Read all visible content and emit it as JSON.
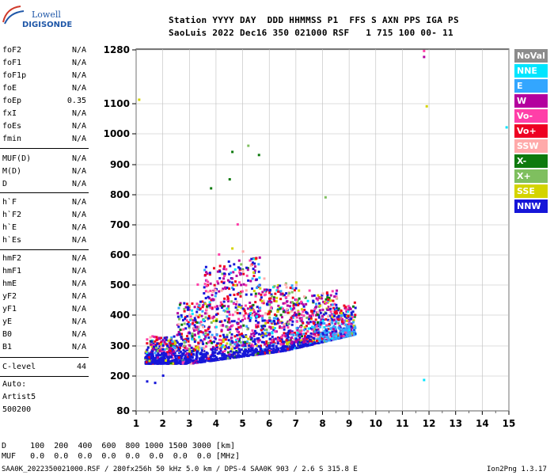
{
  "logo": {
    "line1": "Lowell",
    "line2": "DIGISONDE"
  },
  "header": {
    "line1": "Station YYYY DAY  DDD HHMMSS P1  FFS S AXN PPS IGA PS",
    "line2": "SaoLuis 2022 Dec16 350 021000 RSF   1 715 100 00- 11"
  },
  "params": {
    "group1": [
      {
        "label": "foF2",
        "value": "N/A"
      },
      {
        "label": "foF1",
        "value": "N/A"
      },
      {
        "label": "foF1p",
        "value": "N/A"
      },
      {
        "label": "foE",
        "value": "N/A"
      },
      {
        "label": "foEp",
        "value": "0.35"
      },
      {
        "label": "fxI",
        "value": "N/A"
      },
      {
        "label": "foEs",
        "value": "N/A"
      },
      {
        "label": "fmin",
        "value": "N/A"
      }
    ],
    "group2": [
      {
        "label": "MUF(D)",
        "value": "N/A"
      },
      {
        "label": "M(D)",
        "value": "N/A"
      },
      {
        "label": "D",
        "value": "N/A"
      }
    ],
    "group3": [
      {
        "label": "h`F",
        "value": "N/A"
      },
      {
        "label": "h`F2",
        "value": "N/A"
      },
      {
        "label": "h`E",
        "value": "N/A"
      },
      {
        "label": "h`Es",
        "value": "N/A"
      }
    ],
    "group4": [
      {
        "label": "hmF2",
        "value": "N/A"
      },
      {
        "label": "hmF1",
        "value": "N/A"
      },
      {
        "label": "hmE",
        "value": "N/A"
      },
      {
        "label": "yF2",
        "value": "N/A"
      },
      {
        "label": "yF1",
        "value": "N/A"
      },
      {
        "label": "yE",
        "value": "N/A"
      },
      {
        "label": "B0",
        "value": "N/A"
      },
      {
        "label": "B1",
        "value": "N/A"
      }
    ],
    "clevel": {
      "label": "C-level",
      "value": "44"
    },
    "auto": [
      "Auto:",
      "Artist5",
      "500200"
    ]
  },
  "legend": [
    {
      "label": "NoVal",
      "color": "#8c8c8c"
    },
    {
      "label": "NNE",
      "color": "#00e5ff"
    },
    {
      "label": "E",
      "color": "#33a6ff"
    },
    {
      "label": "W",
      "color": "#b4009e"
    },
    {
      "label": "Vo-",
      "color": "#ff3fa8"
    },
    {
      "label": "Vo+",
      "color": "#ee0022"
    },
    {
      "label": "SSW",
      "color": "#ffaaaa"
    },
    {
      "label": "X-",
      "color": "#0e7a0e"
    },
    {
      "label": "X+",
      "color": "#7fbf5f"
    },
    {
      "label": "SSE",
      "color": "#d4d400"
    },
    {
      "label": "NNW",
      "color": "#1616d8"
    }
  ],
  "footer": {
    "d_row": "D     100  200  400  600  800 1000 1500 3000 [km]",
    "muf_row": "MUF   0.0  0.0  0.0  0.0  0.0  0.0  0.0  0.0 [MHz]",
    "file_line": "SAA0K_2022350021000.RSF / 280fx256h 50 kHz 5.0 km / DPS-4 SAA0K 903 / 2.6 S 315.8 E",
    "version": "Ion2Png 1.3.17"
  },
  "chart_data": {
    "type": "scatter",
    "title": "",
    "xlabel": "",
    "ylabel": "",
    "xlim": [
      1,
      15
    ],
    "ylim": [
      80,
      1280
    ],
    "x_ticks": [
      1,
      2,
      3,
      4,
      5,
      6,
      7,
      8,
      9,
      10,
      11,
      12,
      13,
      14,
      15
    ],
    "y_ticks": [
      80,
      200,
      300,
      400,
      500,
      600,
      700,
      800,
      900,
      1000,
      1100,
      1280
    ],
    "y_axis_note": "nonlinear (group range) scale",
    "grid": true,
    "legend_position": "right",
    "series": [
      {
        "name": "NNE",
        "color": "#00e5ff",
        "points": [
          [
            3.1,
            320
          ],
          [
            4.0,
            360
          ],
          [
            5.3,
            390
          ],
          [
            6.8,
            420
          ],
          [
            8.0,
            380
          ],
          [
            9.0,
            350
          ],
          [
            8.5,
            330
          ],
          [
            7.6,
            360
          ],
          [
            4.4,
            420
          ],
          [
            6.1,
            340
          ],
          [
            11.8,
            185
          ],
          [
            14.9,
            1020
          ]
        ]
      },
      {
        "name": "E",
        "color": "#33a6ff",
        "points": [
          [
            8.1,
            340
          ],
          [
            8.4,
            330
          ],
          [
            8.7,
            345
          ],
          [
            9.0,
            340
          ],
          [
            7.9,
            360
          ],
          [
            8.3,
            355
          ],
          [
            8.6,
            325
          ],
          [
            8.9,
            335
          ],
          [
            7.7,
            345
          ],
          [
            8.2,
            325
          ],
          [
            7.3,
            350
          ],
          [
            6.9,
            335
          ]
        ]
      },
      {
        "name": "W",
        "color": "#b4009e",
        "points": [
          [
            1.8,
            260
          ],
          [
            2.4,
            280
          ],
          [
            3.0,
            300
          ],
          [
            3.6,
            330
          ],
          [
            4.2,
            350
          ],
          [
            4.8,
            370
          ],
          [
            5.4,
            340
          ],
          [
            6.0,
            360
          ],
          [
            6.6,
            330
          ],
          [
            7.2,
            380
          ],
          [
            3.9,
            450
          ],
          [
            4.6,
            520
          ],
          [
            5.6,
            470
          ],
          [
            11.8,
            1255
          ]
        ]
      },
      {
        "name": "Vo-",
        "color": "#ff3fa8",
        "points": [
          [
            2.2,
            270
          ],
          [
            2.9,
            290
          ],
          [
            3.7,
            310
          ],
          [
            4.5,
            400
          ],
          [
            5.1,
            430
          ],
          [
            5.9,
            380
          ],
          [
            6.5,
            420
          ],
          [
            7.0,
            450
          ],
          [
            7.5,
            480
          ],
          [
            8.3,
            410
          ],
          [
            3.3,
            500
          ],
          [
            4.1,
            600
          ],
          [
            4.8,
            700
          ],
          [
            11.8,
            1275
          ]
        ]
      },
      {
        "name": "Vo+",
        "color": "#ee0022",
        "points": [
          [
            2.6,
            260
          ],
          [
            3.2,
            285
          ],
          [
            4.0,
            300
          ],
          [
            4.7,
            330
          ],
          [
            5.5,
            360
          ],
          [
            6.2,
            400
          ],
          [
            6.9,
            430
          ],
          [
            7.6,
            410
          ],
          [
            8.2,
            450
          ],
          [
            8.8,
            430
          ],
          [
            9.2,
            440
          ],
          [
            3.4,
            420
          ],
          [
            4.3,
            560
          ]
        ]
      },
      {
        "name": "SSW",
        "color": "#ffaaaa",
        "points": [
          [
            3.5,
            360
          ],
          [
            4.2,
            480
          ],
          [
            5.0,
            610
          ],
          [
            5.8,
            520
          ],
          [
            6.6,
            500
          ],
          [
            7.3,
            460
          ],
          [
            8.0,
            470
          ],
          [
            3.0,
            400
          ]
        ]
      },
      {
        "name": "X-",
        "color": "#0e7a0e",
        "points": [
          [
            2.3,
            300
          ],
          [
            3.1,
            330
          ],
          [
            4.0,
            380
          ],
          [
            4.5,
            850
          ],
          [
            4.6,
            940
          ],
          [
            5.6,
            930
          ],
          [
            6.4,
            420
          ],
          [
            7.8,
            400
          ],
          [
            8.6,
            420
          ],
          [
            3.8,
            820
          ]
        ]
      },
      {
        "name": "X+",
        "color": "#7fbf5f",
        "points": [
          [
            2.8,
            310
          ],
          [
            3.6,
            340
          ],
          [
            4.4,
            360
          ],
          [
            5.2,
            960
          ],
          [
            6.0,
            390
          ],
          [
            6.7,
            370
          ],
          [
            7.4,
            390
          ],
          [
            8.1,
            790
          ],
          [
            4.9,
            470
          ]
        ]
      },
      {
        "name": "SSE",
        "color": "#d4d400",
        "points": [
          [
            2.1,
            250
          ],
          [
            3.0,
            280
          ],
          [
            3.9,
            380
          ],
          [
            4.6,
            620
          ],
          [
            5.4,
            540
          ],
          [
            6.3,
            410
          ],
          [
            7.1,
            480
          ],
          [
            7.9,
            430
          ],
          [
            8.7,
            405
          ],
          [
            1.1,
            1112
          ],
          [
            11.9,
            1090
          ]
        ]
      },
      {
        "name": "NNW",
        "color": "#1616d8",
        "points": [
          [
            1.5,
            240
          ],
          [
            1.8,
            245
          ],
          [
            2.2,
            240
          ],
          [
            2.6,
            243
          ],
          [
            3.0,
            245
          ],
          [
            3.5,
            248
          ],
          [
            4.0,
            255
          ],
          [
            4.5,
            262
          ],
          [
            5.0,
            272
          ],
          [
            5.5,
            285
          ],
          [
            6.0,
            300
          ],
          [
            6.5,
            312
          ],
          [
            7.0,
            322
          ],
          [
            7.5,
            330
          ],
          [
            8.0,
            340
          ],
          [
            8.5,
            345
          ],
          [
            2.0,
            300
          ],
          [
            3.0,
            340
          ],
          [
            4.0,
            400
          ],
          [
            5.0,
            420
          ],
          [
            6.0,
            380
          ],
          [
            7.0,
            400
          ],
          [
            1.4,
            180
          ],
          [
            1.7,
            175
          ],
          [
            2.0,
            200
          ]
        ]
      }
    ]
  }
}
